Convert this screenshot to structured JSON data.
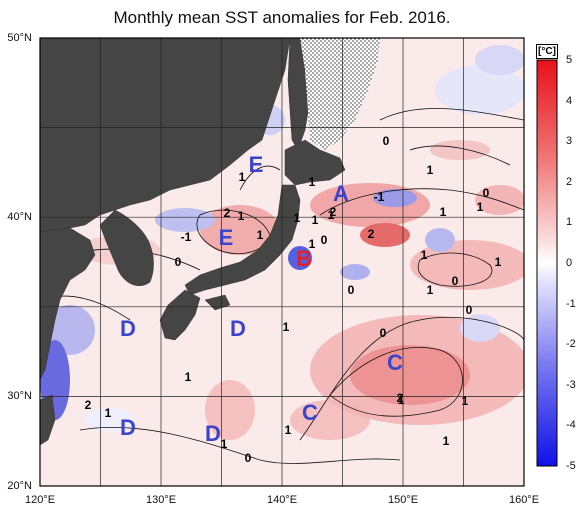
{
  "title": "Monthly mean SST anomalies for Feb. 2016.",
  "colorbar": {
    "unit": "[°C]",
    "ticks": [
      "5",
      "4",
      "3",
      "2",
      "1",
      "0",
      "-1",
      "-2",
      "-3",
      "-4",
      "-5"
    ]
  },
  "lat_labels": [
    "50°N",
    "40°N",
    "30°N",
    "20°N"
  ],
  "lon_labels": [
    "120°E",
    "130°E",
    "140°E",
    "150°E",
    "160°E"
  ],
  "regions": [
    {
      "label": "E",
      "color": "#3a44cc"
    },
    {
      "label": "E",
      "color": "#3a44cc"
    },
    {
      "label": "A",
      "color": "#3a44cc"
    },
    {
      "label": "B",
      "color": "#e0202a"
    },
    {
      "label": "D",
      "color": "#3a44cc"
    },
    {
      "label": "D",
      "color": "#3a44cc"
    },
    {
      "label": "C",
      "color": "#3a44cc"
    },
    {
      "label": "C",
      "color": "#3a44cc"
    },
    {
      "label": "D",
      "color": "#3a44cc"
    },
    {
      "label": "D",
      "color": "#3a44cc"
    }
  ],
  "contour_labels": [
    "0",
    "1",
    "1",
    "1",
    "2",
    "1",
    "-1",
    "0",
    "1",
    "1",
    "2",
    "2",
    "-1",
    "1",
    "0",
    "1",
    "1",
    "1",
    "0",
    "1",
    "0",
    "1",
    "0",
    "1",
    "0",
    "1",
    "2",
    "1",
    "1",
    "1",
    "1",
    "1",
    "0",
    "1",
    "1",
    "1",
    "0",
    "2"
  ],
  "colors": {
    "land": "#454545",
    "positive": "#e83030",
    "negative": "#3030e0"
  }
}
